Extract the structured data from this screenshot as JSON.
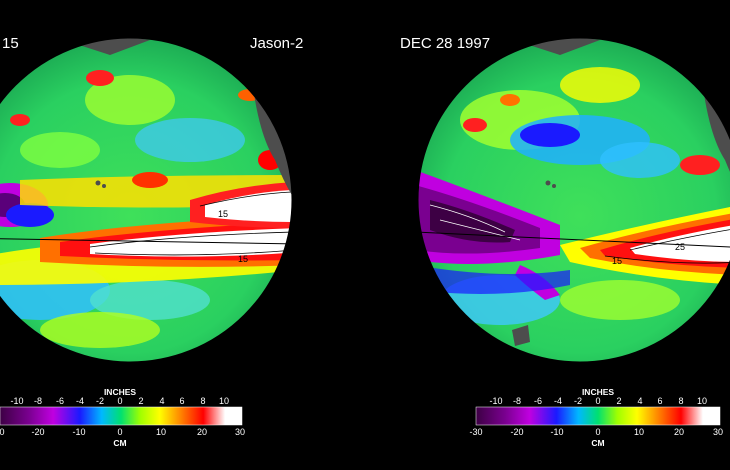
{
  "left_panel": {
    "date_fragment": "15",
    "satellite": "Jason-2",
    "scale": {
      "inches_label": "INCHES",
      "inches_ticks": [
        "-10",
        "-8",
        "-6",
        "-4",
        "-2",
        "0",
        "2",
        "4",
        "6",
        "8",
        "10"
      ],
      "cm_label": "CM",
      "cm_ticks": [
        "0",
        "-20",
        "-10",
        "0",
        "10",
        "20",
        "30"
      ]
    },
    "contour_labels": [
      "15",
      "15"
    ]
  },
  "right_panel": {
    "date": "DEC 28  1997",
    "scale": {
      "inches_label": "INCHES",
      "inches_ticks": [
        "-10",
        "-8",
        "-6",
        "-4",
        "-2",
        "0",
        "2",
        "4",
        "6",
        "8",
        "10"
      ],
      "cm_label": "CM",
      "cm_ticks": [
        "-30",
        "-20",
        "-10",
        "0",
        "10",
        "20",
        "30"
      ]
    },
    "contour_labels": [
      "25",
      "15"
    ]
  },
  "colors": {
    "background": "#000000",
    "land": "#4d4d4d",
    "colorbar_stops": [
      "#3d0044",
      "#7a0090",
      "#c000e0",
      "#1a1aff",
      "#00b8ff",
      "#00e070",
      "#a0ff00",
      "#ffff00",
      "#ff8000",
      "#ff0000",
      "#ffffff"
    ]
  }
}
